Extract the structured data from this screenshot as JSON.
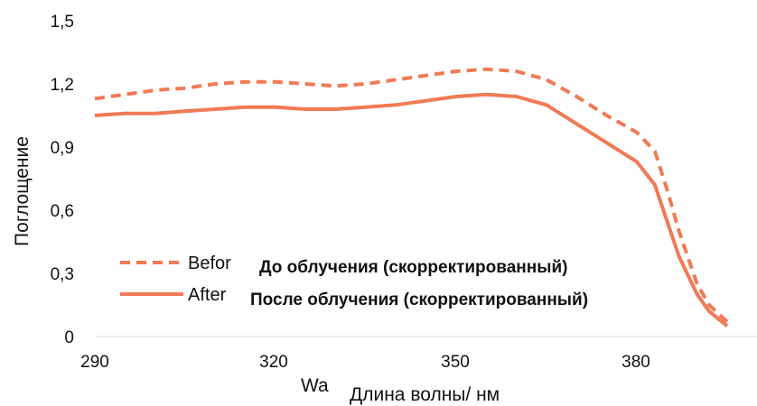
{
  "colors": {
    "series": "#f07a55",
    "text": "#111111",
    "axis": "#dddddd"
  },
  "chart_data": {
    "type": "line",
    "title": "",
    "ylabel": "Поглощение",
    "xlabel_overlay": "Wa",
    "xlabel": "Длина волны/ нм",
    "xlim": [
      290,
      395
    ],
    "ylim": [
      0,
      1.5
    ],
    "x_ticks": [
      "290",
      "320",
      "350",
      "380"
    ],
    "y_ticks": [
      "0",
      "0,3",
      "0,6",
      "0,9",
      "1,2",
      "1,5"
    ],
    "grid": false,
    "legend": {
      "placement": "lower-left",
      "items": [
        {
          "style": "dashed",
          "label_overlay": "Befor",
          "label": "До облучения (скорректированный)"
        },
        {
          "style": "solid",
          "label_overlay": "After",
          "label": "После облучения (скорректированный)"
        }
      ]
    },
    "series": [
      {
        "style": "dashed",
        "x": [
          290,
          295,
          300,
          305,
          310,
          315,
          320,
          325,
          330,
          335,
          340,
          345,
          350,
          355,
          360,
          365,
          370,
          375,
          380,
          383,
          385,
          387,
          390,
          392,
          395
        ],
        "values": [
          1.13,
          1.15,
          1.17,
          1.18,
          1.2,
          1.21,
          1.21,
          1.2,
          1.19,
          1.2,
          1.22,
          1.24,
          1.26,
          1.27,
          1.26,
          1.22,
          1.14,
          1.05,
          0.97,
          0.88,
          0.7,
          0.5,
          0.25,
          0.15,
          0.07
        ]
      },
      {
        "style": "solid",
        "x": [
          290,
          295,
          300,
          305,
          310,
          315,
          320,
          325,
          330,
          335,
          340,
          345,
          350,
          355,
          360,
          365,
          370,
          375,
          380,
          383,
          385,
          387,
          390,
          392,
          395
        ],
        "values": [
          1.05,
          1.06,
          1.06,
          1.07,
          1.08,
          1.09,
          1.09,
          1.08,
          1.08,
          1.09,
          1.1,
          1.12,
          1.14,
          1.15,
          1.14,
          1.1,
          1.01,
          0.92,
          0.83,
          0.72,
          0.55,
          0.38,
          0.2,
          0.12,
          0.05
        ]
      }
    ]
  }
}
